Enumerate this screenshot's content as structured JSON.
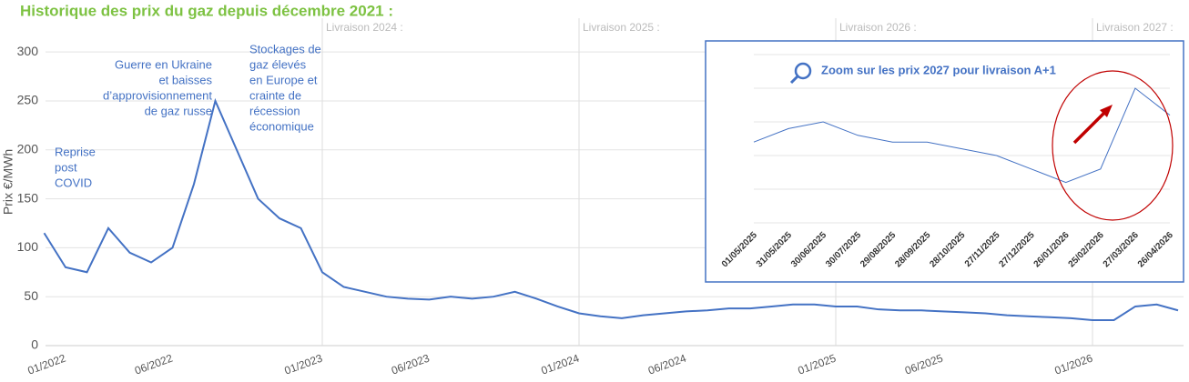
{
  "chart_data": [
    {
      "type": "line",
      "title": "Historique des prix du gaz  depuis décembre 2021 :",
      "y_label": "Prix €/MWh",
      "x": [
        "12/2021",
        "01/2022",
        "02/2022",
        "03/2022",
        "04/2022",
        "05/2022",
        "06/2022",
        "07/2022",
        "08/2022",
        "09/2022",
        "10/2022",
        "11/2022",
        "12/2022",
        "01/2023",
        "02/2023",
        "03/2023",
        "04/2023",
        "05/2023",
        "06/2023",
        "07/2023",
        "08/2023",
        "09/2023",
        "10/2023",
        "11/2023",
        "12/2023",
        "01/2024",
        "02/2024",
        "03/2024",
        "04/2024",
        "05/2024",
        "06/2024",
        "07/2024",
        "08/2024",
        "09/2024",
        "10/2024",
        "11/2024",
        "12/2024",
        "01/2025",
        "02/2025",
        "03/2025",
        "04/2025",
        "05/2025",
        "06/2025",
        "07/2025",
        "08/2025",
        "09/2025",
        "10/2025",
        "11/2025",
        "12/2025",
        "01/2026",
        "02/2026",
        "03/2026",
        "04/2026",
        "05/2026"
      ],
      "values": [
        115,
        80,
        75,
        120,
        95,
        85,
        100,
        165,
        250,
        200,
        150,
        130,
        120,
        75,
        60,
        55,
        50,
        48,
        47,
        50,
        48,
        50,
        55,
        48,
        40,
        33,
        30,
        28,
        31,
        33,
        35,
        36,
        38,
        38,
        40,
        42,
        42,
        40,
        40,
        37,
        36,
        36,
        35,
        34,
        33,
        31,
        30,
        29,
        28,
        26,
        26,
        40,
        42,
        36
      ],
      "color": "#4472c4",
      "ylim": [
        0,
        315
      ],
      "yticks": [
        0,
        50,
        100,
        150,
        200,
        250,
        300
      ],
      "xticks": [
        "01/2022",
        "06/2022",
        "01/2023",
        "06/2023",
        "01/2024",
        "06/2024",
        "01/2025",
        "06/2025",
        "01/2026"
      ],
      "grid": true,
      "period_starts": [
        "01/2023",
        "01/2024",
        "01/2025",
        "01/2026"
      ],
      "period_labels": [
        "Livraison 2024 :",
        "Livraison 2025 :",
        "Livraison 2026 :",
        "Livraison 2027 :"
      ],
      "annotations": [
        [
          "Reprise",
          "post",
          "COVID"
        ],
        [
          "Guerre en Ukraine",
          "et baisses",
          "d’approvisionnement",
          "de gaz russe"
        ],
        [
          "Stockages de",
          "gaz élevés",
          "en Europe et",
          "crainte de",
          "récession",
          "économique"
        ]
      ]
    },
    {
      "type": "line",
      "title": "Zoom sur les prix 2027 pour livraison A+1",
      "categories": [
        "01/05/2025",
        "31/05/2025",
        "30/06/2025",
        "30/07/2025",
        "29/08/2025",
        "28/09/2025",
        "28/10/2025",
        "27/11/2025",
        "27/12/2025",
        "26/01/2026",
        "25/02/2026",
        "27/03/2026",
        "26/04/2026"
      ],
      "values": [
        32,
        34,
        35,
        33,
        32,
        32,
        31,
        30,
        28,
        26,
        28,
        40,
        36
      ],
      "color": "#4472c4",
      "ylim": [
        20,
        45
      ],
      "grid": true
    }
  ]
}
